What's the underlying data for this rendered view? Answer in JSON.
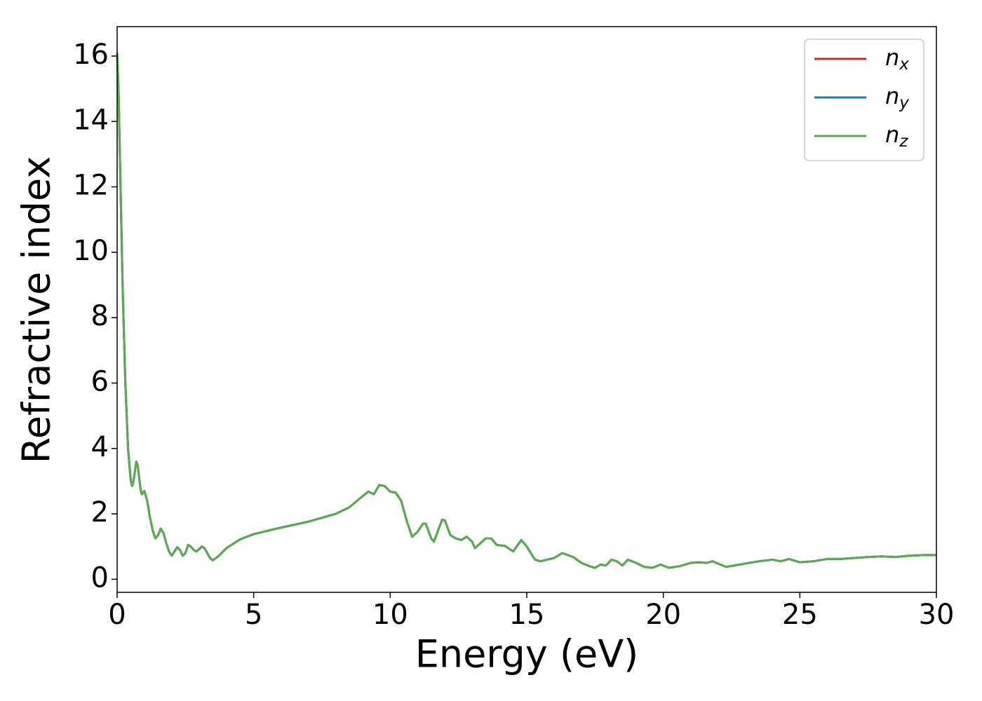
{
  "chart_data": {
    "type": "line",
    "xlabel": "Energy (eV)",
    "ylabel": "Refractive index",
    "x": [
      0,
      0.05,
      0.1,
      0.2,
      0.3,
      0.4,
      0.5,
      0.55,
      0.6,
      0.7,
      0.75,
      0.85,
      0.9,
      1.0,
      1.1,
      1.2,
      1.3,
      1.4,
      1.5,
      1.6,
      1.7,
      1.8,
      1.9,
      2.0,
      2.1,
      2.2,
      2.3,
      2.4,
      2.5,
      2.6,
      2.7,
      2.8,
      2.9,
      3.0,
      3.1,
      3.2,
      3.3,
      3.4,
      3.5,
      3.7,
      4.0,
      4.5,
      5,
      6,
      7,
      8,
      8.5,
      9,
      9.2,
      9.4,
      9.6,
      9.8,
      10,
      10.2,
      10.4,
      10.6,
      10.8,
      11,
      11.2,
      11.3,
      11.5,
      11.6,
      11.8,
      11.9,
      12.0,
      12.2,
      12.4,
      12.6,
      12.8,
      13,
      13.1,
      13.3,
      13.5,
      13.7,
      13.9,
      14.2,
      14.5,
      14.8,
      15.0,
      15.3,
      15.5,
      16,
      16.3,
      16.7,
      17,
      17.3,
      17.5,
      17.7,
      17.9,
      18.1,
      18.3,
      18.5,
      18.7,
      19,
      19.3,
      19.6,
      19.9,
      20.2,
      20.6,
      21,
      21.3,
      21.6,
      21.8,
      22,
      22.3,
      22.6,
      23,
      23.5,
      24,
      24.3,
      24.6,
      25,
      25.5,
      26,
      26.5,
      27,
      27.5,
      28,
      28.5,
      29,
      29.5,
      30
    ],
    "series": [
      {
        "name": {
          "base": "n",
          "sub": "x"
        },
        "color": "#d62728",
        "values": [
          16.1,
          15,
          13,
          9,
          6,
          4,
          3.0,
          2.85,
          3.0,
          3.6,
          3.5,
          2.8,
          2.6,
          2.7,
          2.4,
          1.9,
          1.5,
          1.25,
          1.35,
          1.55,
          1.4,
          1.1,
          0.85,
          0.72,
          0.85,
          0.98,
          0.9,
          0.72,
          0.8,
          1.05,
          1.0,
          0.9,
          0.85,
          0.92,
          1.0,
          0.95,
          0.8,
          0.65,
          0.58,
          0.7,
          0.95,
          1.22,
          1.38,
          1.58,
          1.76,
          2.0,
          2.2,
          2.55,
          2.68,
          2.6,
          2.88,
          2.85,
          2.68,
          2.65,
          2.4,
          1.8,
          1.3,
          1.45,
          1.7,
          1.7,
          1.25,
          1.15,
          1.6,
          1.82,
          1.8,
          1.35,
          1.25,
          1.2,
          1.3,
          1.15,
          0.95,
          1.1,
          1.25,
          1.25,
          1.05,
          1.02,
          0.85,
          1.2,
          1.0,
          0.6,
          0.55,
          0.65,
          0.8,
          0.68,
          0.5,
          0.4,
          0.35,
          0.45,
          0.42,
          0.6,
          0.55,
          0.42,
          0.6,
          0.5,
          0.38,
          0.35,
          0.45,
          0.35,
          0.4,
          0.5,
          0.52,
          0.5,
          0.55,
          0.48,
          0.38,
          0.42,
          0.48,
          0.55,
          0.6,
          0.55,
          0.62,
          0.52,
          0.55,
          0.62,
          0.62,
          0.65,
          0.68,
          0.7,
          0.68,
          0.72,
          0.74,
          0.74
        ]
      },
      {
        "name": {
          "base": "n",
          "sub": "y"
        },
        "color": "#1f77b4",
        "values": [
          16.1,
          15,
          13,
          9,
          6,
          4,
          3.0,
          2.85,
          3.0,
          3.6,
          3.5,
          2.8,
          2.6,
          2.7,
          2.4,
          1.9,
          1.5,
          1.25,
          1.35,
          1.55,
          1.4,
          1.1,
          0.85,
          0.72,
          0.85,
          0.98,
          0.9,
          0.72,
          0.8,
          1.05,
          1.0,
          0.9,
          0.85,
          0.92,
          1.0,
          0.95,
          0.8,
          0.65,
          0.58,
          0.7,
          0.95,
          1.22,
          1.38,
          1.58,
          1.76,
          2.0,
          2.2,
          2.55,
          2.68,
          2.6,
          2.88,
          2.85,
          2.68,
          2.65,
          2.4,
          1.8,
          1.3,
          1.45,
          1.7,
          1.7,
          1.25,
          1.15,
          1.6,
          1.82,
          1.8,
          1.35,
          1.25,
          1.2,
          1.3,
          1.15,
          0.95,
          1.1,
          1.25,
          1.25,
          1.05,
          1.02,
          0.85,
          1.2,
          1.0,
          0.6,
          0.55,
          0.65,
          0.8,
          0.68,
          0.5,
          0.4,
          0.35,
          0.45,
          0.42,
          0.6,
          0.55,
          0.42,
          0.6,
          0.5,
          0.38,
          0.35,
          0.45,
          0.35,
          0.4,
          0.5,
          0.52,
          0.5,
          0.55,
          0.48,
          0.38,
          0.42,
          0.48,
          0.55,
          0.6,
          0.55,
          0.62,
          0.52,
          0.55,
          0.62,
          0.62,
          0.65,
          0.68,
          0.7,
          0.68,
          0.72,
          0.74,
          0.74
        ]
      },
      {
        "name": {
          "base": "n",
          "sub": "z"
        },
        "color": "#5aab52",
        "values": [
          16.1,
          15,
          13,
          9,
          6,
          4,
          3.0,
          2.85,
          3.0,
          3.6,
          3.5,
          2.8,
          2.6,
          2.7,
          2.4,
          1.9,
          1.5,
          1.25,
          1.35,
          1.55,
          1.4,
          1.1,
          0.85,
          0.72,
          0.85,
          0.98,
          0.9,
          0.72,
          0.8,
          1.05,
          1.0,
          0.9,
          0.85,
          0.92,
          1.0,
          0.95,
          0.8,
          0.65,
          0.58,
          0.7,
          0.95,
          1.22,
          1.38,
          1.58,
          1.76,
          2.0,
          2.2,
          2.55,
          2.68,
          2.6,
          2.88,
          2.85,
          2.68,
          2.65,
          2.4,
          1.8,
          1.3,
          1.45,
          1.7,
          1.7,
          1.25,
          1.15,
          1.6,
          1.82,
          1.8,
          1.35,
          1.25,
          1.2,
          1.3,
          1.15,
          0.95,
          1.1,
          1.25,
          1.25,
          1.05,
          1.02,
          0.85,
          1.2,
          1.0,
          0.6,
          0.55,
          0.65,
          0.8,
          0.68,
          0.5,
          0.4,
          0.35,
          0.45,
          0.42,
          0.6,
          0.55,
          0.42,
          0.6,
          0.5,
          0.38,
          0.35,
          0.45,
          0.35,
          0.4,
          0.5,
          0.52,
          0.5,
          0.55,
          0.48,
          0.38,
          0.42,
          0.48,
          0.55,
          0.6,
          0.55,
          0.62,
          0.52,
          0.55,
          0.62,
          0.62,
          0.65,
          0.68,
          0.7,
          0.68,
          0.72,
          0.74,
          0.74
        ]
      }
    ],
    "xlim": [
      0,
      30
    ],
    "xticks": [
      0,
      5,
      10,
      15,
      20,
      25,
      30
    ],
    "ylim": [
      -0.4,
      16.9
    ],
    "yticks": [
      0,
      2,
      4,
      6,
      8,
      10,
      12,
      14,
      16
    ],
    "grid": false,
    "legend": "upper right"
  }
}
